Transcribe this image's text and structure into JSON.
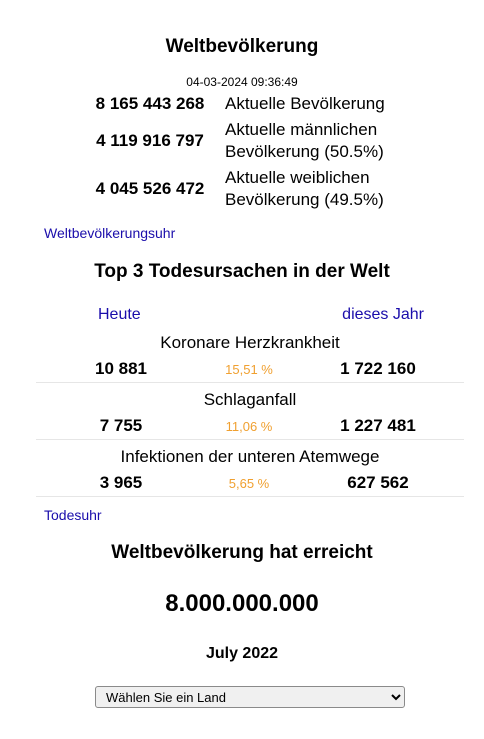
{
  "header": {
    "title": "Weltbevölkerung",
    "datetime": "04-03-2024 09:36:49"
  },
  "stats": [
    {
      "value": "8 165 443 268",
      "label": "Aktuelle Bevölkerung"
    },
    {
      "value": "4 119 916 797",
      "label": "Aktuelle männlichen Bevölkerung (50.5%)"
    },
    {
      "value": "4 045 526 472",
      "label": "Aktuelle weiblichen Bevölkerung (49.5%)"
    }
  ],
  "links": {
    "population_clock": "Weltbevölkerungsuhr",
    "death_clock": "Todesuhr"
  },
  "deaths": {
    "title": "Top 3 Todesursachen in der Welt",
    "col_today": "Heute",
    "col_year": "dieses Jahr",
    "causes": [
      {
        "name": "Koronare Herzkrankheit",
        "today": "10 881",
        "pct": "15,51 %",
        "year": "1 722 160"
      },
      {
        "name": "Schlaganfall",
        "today": "7 755",
        "pct": "11,06 %",
        "year": "1 227 481"
      },
      {
        "name": "Infektionen der unteren Atemwege",
        "today": "3 965",
        "pct": "5,65 %",
        "year": "627 562"
      }
    ]
  },
  "reached": {
    "title": "Weltbevölkerung hat erreicht",
    "number": "8.000.000.000",
    "date": "July 2022"
  },
  "country_select": {
    "selected": "Wählen Sie ein Land"
  }
}
